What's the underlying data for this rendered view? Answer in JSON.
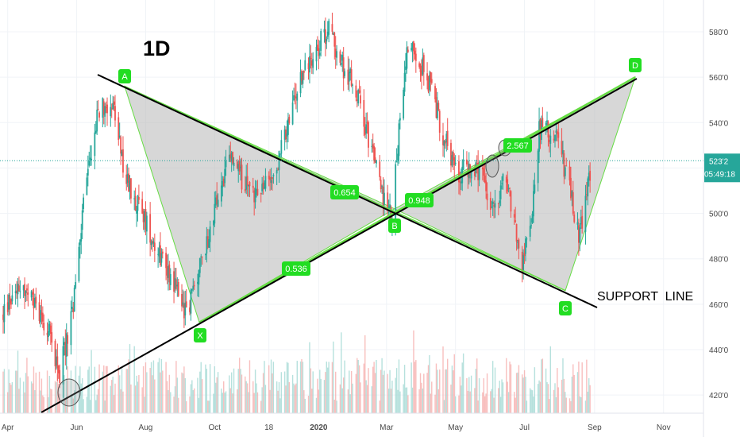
{
  "chart_data": {
    "type": "candlestick",
    "timeframe": "1D",
    "x_axis": {
      "ticks": [
        "Apr",
        "Jun",
        "Aug",
        "Oct",
        "18",
        "2020",
        "Mar",
        "May",
        "Jul",
        "Sep",
        "Nov"
      ]
    },
    "y_axis": {
      "ticks": [
        "420'0",
        "440'0",
        "460'0",
        "480'0",
        "500'0",
        "520'0",
        "540'0",
        "560'0",
        "580'0"
      ],
      "range": [
        412,
        594
      ]
    },
    "last_price": {
      "label": "523'2",
      "value": 523.2,
      "countdown": "05:49:18",
      "color": "#26a69a"
    },
    "pattern": {
      "name": "harmonic XABCD",
      "points": [
        {
          "label": "A",
          "value": 556
        },
        {
          "label": "X",
          "value": 452
        },
        {
          "label": "B",
          "value": 502
        },
        {
          "label": "C",
          "value": 466
        },
        {
          "label": "D",
          "value": 560
        }
      ],
      "ratios": [
        "0.654",
        "0.536",
        "0.948",
        "2.567"
      ],
      "fill_color": "#bdbdbd",
      "line_color": "#66dd44"
    },
    "annotations": {
      "support_label": "SUPPORT  LINE"
    },
    "price_path_anchors": [
      {
        "date": "Mar 28",
        "price": 455
      },
      {
        "date": "Apr 10",
        "price": 470
      },
      {
        "date": "May 5",
        "price": 452
      },
      {
        "date": "May 17",
        "price": 430
      },
      {
        "date": "May 29",
        "price": 458
      },
      {
        "date": "Jun 8",
        "price": 510
      },
      {
        "date": "Jun 20",
        "price": 545
      },
      {
        "date": "Jul 2",
        "price": 550
      },
      {
        "date": "Jul 14",
        "price": 515
      },
      {
        "date": "Jul 29",
        "price": 500
      },
      {
        "date": "Aug 11",
        "price": 485
      },
      {
        "date": "Aug 26",
        "price": 470
      },
      {
        "date": "Sep 6",
        "price": 456
      },
      {
        "date": "Sep 20",
        "price": 480
      },
      {
        "date": "Oct 3",
        "price": 505
      },
      {
        "date": "Oct 15",
        "price": 525
      },
      {
        "date": "Oct 28",
        "price": 512
      },
      {
        "date": "Nov 10",
        "price": 508
      },
      {
        "date": "Nov 25",
        "price": 520
      },
      {
        "date": "Dec 8",
        "price": 545
      },
      {
        "date": "Dec 20",
        "price": 565
      },
      {
        "date": "Jan 2",
        "price": 575
      },
      {
        "date": "Jan 10",
        "price": 582
      },
      {
        "date": "Jan 22",
        "price": 565
      },
      {
        "date": "Feb 3",
        "price": 555
      },
      {
        "date": "Feb 17",
        "price": 528
      },
      {
        "date": "Feb 28",
        "price": 505
      },
      {
        "date": "Mar 6",
        "price": 498
      },
      {
        "date": "Mar 14",
        "price": 550
      },
      {
        "date": "Mar 20",
        "price": 575
      },
      {
        "date": "Mar 27",
        "price": 572
      },
      {
        "date": "Apr 9",
        "price": 555
      },
      {
        "date": "Apr 20",
        "price": 535
      },
      {
        "date": "May 2",
        "price": 518
      },
      {
        "date": "May 15",
        "price": 520
      },
      {
        "date": "May 25",
        "price": 515
      },
      {
        "date": "Jun 2",
        "price": 500
      },
      {
        "date": "Jun 14",
        "price": 518
      },
      {
        "date": "Jun 24",
        "price": 490
      },
      {
        "date": "Jun 28",
        "price": 475
      },
      {
        "date": "Jul 7",
        "price": 498
      },
      {
        "date": "Jul 14",
        "price": 538
      },
      {
        "date": "Jul 25",
        "price": 535
      },
      {
        "date": "Aug 1",
        "price": 530
      },
      {
        "date": "Aug 10",
        "price": 510
      },
      {
        "date": "Aug 18",
        "price": 490
      },
      {
        "date": "Aug 25",
        "price": 508
      },
      {
        "date": "Aug 30",
        "price": 522
      }
    ]
  }
}
